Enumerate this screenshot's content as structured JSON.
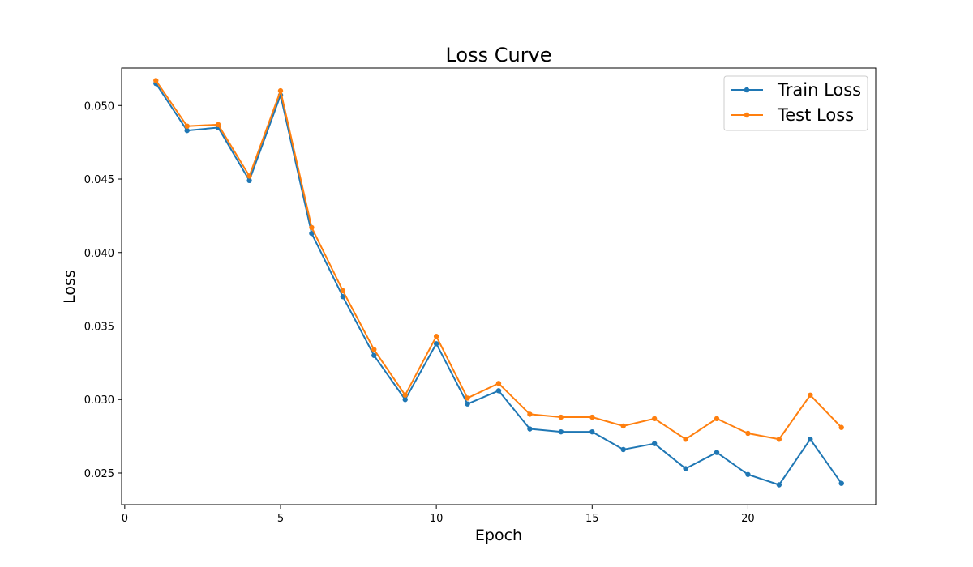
{
  "chart_data": {
    "type": "line",
    "title": "Loss Curve",
    "xlabel": "Epoch",
    "ylabel": "Loss",
    "xlim": [
      -0.1,
      24.1
    ],
    "ylim": [
      0.02285,
      0.05255
    ],
    "xticks": [
      0,
      5,
      10,
      15,
      20
    ],
    "yticks": [
      0.025,
      0.03,
      0.035,
      0.04,
      0.045,
      0.05
    ],
    "ytick_labels": [
      "0.025",
      "0.030",
      "0.035",
      "0.040",
      "0.045",
      "0.050"
    ],
    "grid": false,
    "legend_position": "top-right",
    "x": [
      1,
      2,
      3,
      4,
      5,
      6,
      7,
      8,
      9,
      10,
      11,
      12,
      13,
      14,
      15,
      16,
      17,
      18,
      19,
      20,
      21,
      22,
      23
    ],
    "series": [
      {
        "name": "Train Loss",
        "color": "#1f77b4",
        "values": [
          0.0515,
          0.0483,
          0.0485,
          0.0449,
          0.0507,
          0.0413,
          0.037,
          0.033,
          0.03,
          0.0338,
          0.0297,
          0.0306,
          0.028,
          0.0278,
          0.0278,
          0.0266,
          0.027,
          0.0253,
          0.0264,
          0.0249,
          0.0242,
          0.0273,
          0.0243
        ]
      },
      {
        "name": "Test Loss",
        "color": "#ff7f0e",
        "values": [
          0.0517,
          0.0486,
          0.0487,
          0.0452,
          0.051,
          0.0417,
          0.0374,
          0.0334,
          0.0303,
          0.0343,
          0.0301,
          0.0311,
          0.029,
          0.0288,
          0.0288,
          0.0282,
          0.0287,
          0.0273,
          0.0287,
          0.0277,
          0.0273,
          0.0303,
          0.0281
        ]
      }
    ]
  }
}
